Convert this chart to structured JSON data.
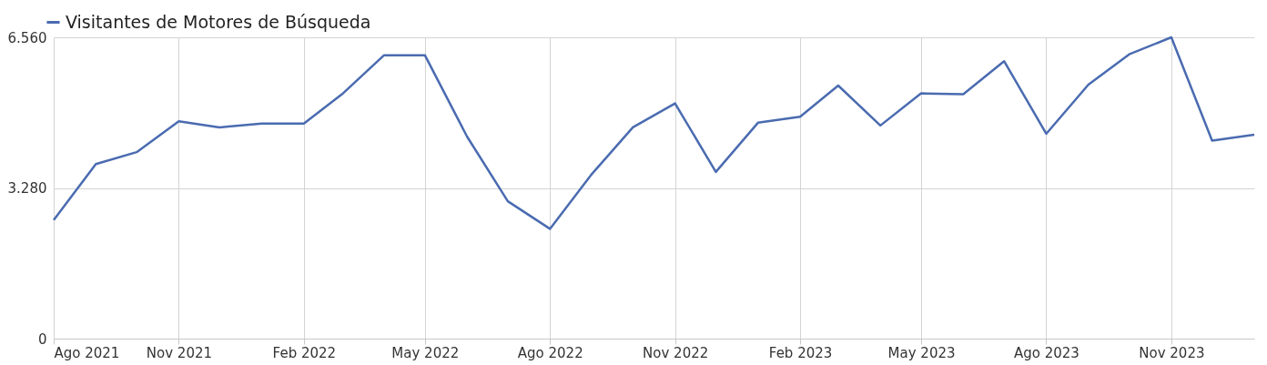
{
  "chart_data": {
    "type": "line",
    "legend": "top left",
    "grid": true,
    "line_style": "solid",
    "marker": "none",
    "x": [
      "2021-08",
      "2021-09",
      "2021-10",
      "2021-11",
      "2021-12",
      "2022-01",
      "2022-02",
      "2022-03",
      "2022-04",
      "2022-05",
      "2022-06",
      "2022-07",
      "2022-08",
      "2022-09",
      "2022-10",
      "2022-11",
      "2022-12",
      "2023-01",
      "2023-02",
      "2023-03",
      "2023-04",
      "2023-05",
      "2023-06",
      "2023-07",
      "2023-08",
      "2023-09",
      "2023-10",
      "2023-11",
      "2023-12",
      "2024-01"
    ],
    "series": [
      {
        "name": "Visitantes de Motores de Búsqueda",
        "color": "#4a6bb0",
        "values": [
          2580,
          3800,
          4060,
          4730,
          4600,
          4680,
          4680,
          5320,
          6170,
          6170,
          4400,
          2990,
          2390,
          3590,
          4600,
          5120,
          3630,
          4700,
          4830,
          5510,
          4640,
          5340,
          5320,
          6040,
          4460,
          5530,
          6190,
          6560,
          4310,
          4440
        ]
      }
    ],
    "xlim": [
      "2021-08",
      "2024-01"
    ],
    "xticks": [
      {
        "value": "2021-08",
        "label": "Ago 2021"
      },
      {
        "value": "2021-11",
        "label": "Nov 2021"
      },
      {
        "value": "2022-02",
        "label": "Feb 2022"
      },
      {
        "value": "2022-05",
        "label": "May 2022"
      },
      {
        "value": "2022-08",
        "label": "Ago 2022"
      },
      {
        "value": "2022-11",
        "label": "Nov 2022"
      },
      {
        "value": "2023-02",
        "label": "Feb 2023"
      },
      {
        "value": "2023-05",
        "label": "May 2023"
      },
      {
        "value": "2023-08",
        "label": "Ago 2023"
      },
      {
        "value": "2023-11",
        "label": "Nov 2023"
      }
    ],
    "ylim": [
      0,
      6560
    ],
    "yticks": [
      0,
      {
        "value": 3280,
        "label": "3.280"
      },
      {
        "value": 6560,
        "label": "6.560"
      }
    ]
  }
}
